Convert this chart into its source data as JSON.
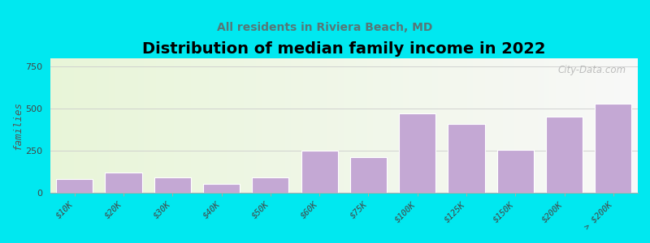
{
  "title": "Distribution of median family income in 2022",
  "subtitle": "All residents in Riviera Beach, MD",
  "categories": [
    "$10K",
    "$20K",
    "$30K",
    "$40K",
    "$50K",
    "$60K",
    "$75K",
    "$100K",
    "$125K",
    "$150K",
    "$200K",
    "> $200K"
  ],
  "values": [
    80,
    120,
    90,
    55,
    90,
    250,
    210,
    470,
    410,
    255,
    450,
    530
  ],
  "bar_color": "#c4a8d4",
  "background_outer": "#00e8f0",
  "ylabel": "families",
  "ylim": [
    0,
    800
  ],
  "yticks": [
    0,
    250,
    500,
    750
  ],
  "title_fontsize": 14,
  "subtitle_fontsize": 10,
  "watermark": "City-Data.com",
  "grid_color": "#cccccc",
  "subtitle_color": "#557777",
  "ylabel_color": "#555555"
}
